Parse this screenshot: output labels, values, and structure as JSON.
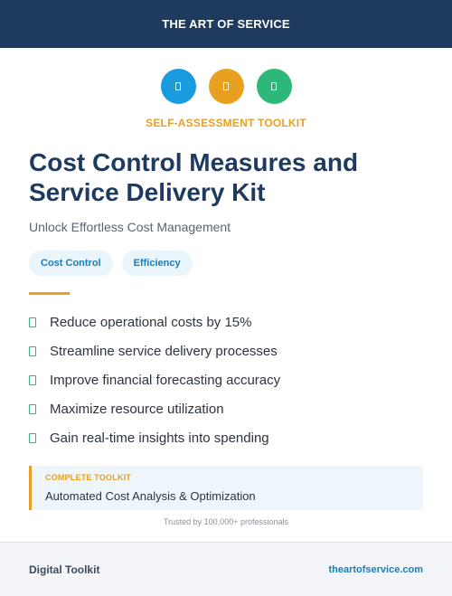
{
  "header": {
    "title": "THE ART OF SERVICE"
  },
  "icons": [
    {
      "name": "document-icon",
      "color": "#1a9be0"
    },
    {
      "name": "document-icon",
      "color": "#e8a020"
    },
    {
      "name": "document-icon",
      "color": "#2db87a"
    }
  ],
  "kicker": "SELF-ASSESSMENT TOOLKIT",
  "title": "Cost Control Measures and Service Delivery Kit",
  "subtitle": "Unlock Effortless Cost Management",
  "tags": [
    "Cost Control",
    "Efficiency"
  ],
  "benefits": [
    "Reduce operational costs by 15%",
    "Streamline service delivery processes",
    "Improve financial forecasting accuracy",
    "Maximize resource utilization",
    "Gain real-time insights into spending"
  ],
  "callout": {
    "label": "COMPLETE TOOLKIT",
    "text": "Automated Cost Analysis & Optimization"
  },
  "trusted": "Trusted by 100,000+ professionals",
  "footer": {
    "left": "Digital Toolkit",
    "right": "theartofservice.com"
  },
  "colors": {
    "navy": "#1e3a5f",
    "accent": "#e8a020",
    "blue": "#1a9be0",
    "green": "#2db87a"
  }
}
